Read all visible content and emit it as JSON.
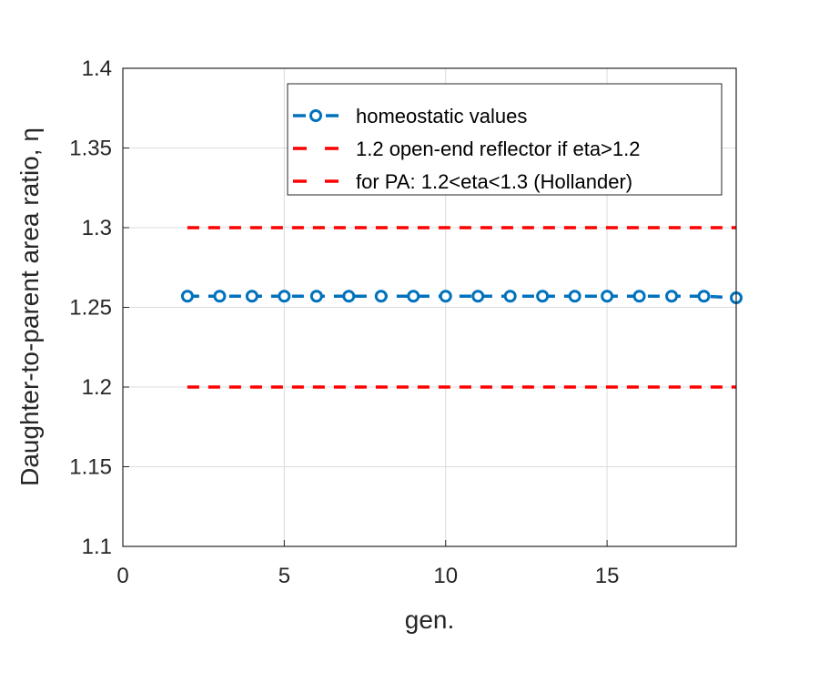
{
  "chart_data": {
    "type": "line",
    "title": "",
    "xlabel": "gen.",
    "ylabel": "Daughter-to-parent area ratio, η",
    "xlim": [
      0,
      19
    ],
    "ylim": [
      1.1,
      1.4
    ],
    "xticks": [
      0,
      5,
      10,
      15
    ],
    "xtick_labels": [
      "0",
      "5",
      "10",
      "15"
    ],
    "yticks": [
      1.1,
      1.15,
      1.2,
      1.25,
      1.3,
      1.35,
      1.4
    ],
    "ytick_labels": [
      "1.1",
      "1.15",
      "1.2",
      "1.25",
      "1.3",
      "1.35",
      "1.4"
    ],
    "grid": true,
    "legend_position": "top-right",
    "series": [
      {
        "name": "homeostatic values",
        "color": "#0072BD",
        "style": "dashed-with-circle-markers",
        "x": [
          2,
          3,
          4,
          5,
          6,
          7,
          8,
          9,
          10,
          11,
          12,
          13,
          14,
          15,
          16,
          17,
          18,
          19
        ],
        "y": [
          1.257,
          1.257,
          1.257,
          1.257,
          1.257,
          1.257,
          1.257,
          1.257,
          1.257,
          1.257,
          1.257,
          1.257,
          1.257,
          1.257,
          1.257,
          1.257,
          1.257,
          1.256
        ]
      },
      {
        "name": "1.2 open-end reflector if eta>1.2",
        "color": "#FF0000",
        "style": "dashed",
        "x": [
          2,
          19
        ],
        "y": [
          1.2,
          1.2
        ]
      },
      {
        "name": "for PA: 1.2<eta<1.3 (Hollander)",
        "color": "#FF0000",
        "style": "dashed",
        "x": [
          2,
          19
        ],
        "y": [
          1.3,
          1.3
        ]
      }
    ]
  }
}
